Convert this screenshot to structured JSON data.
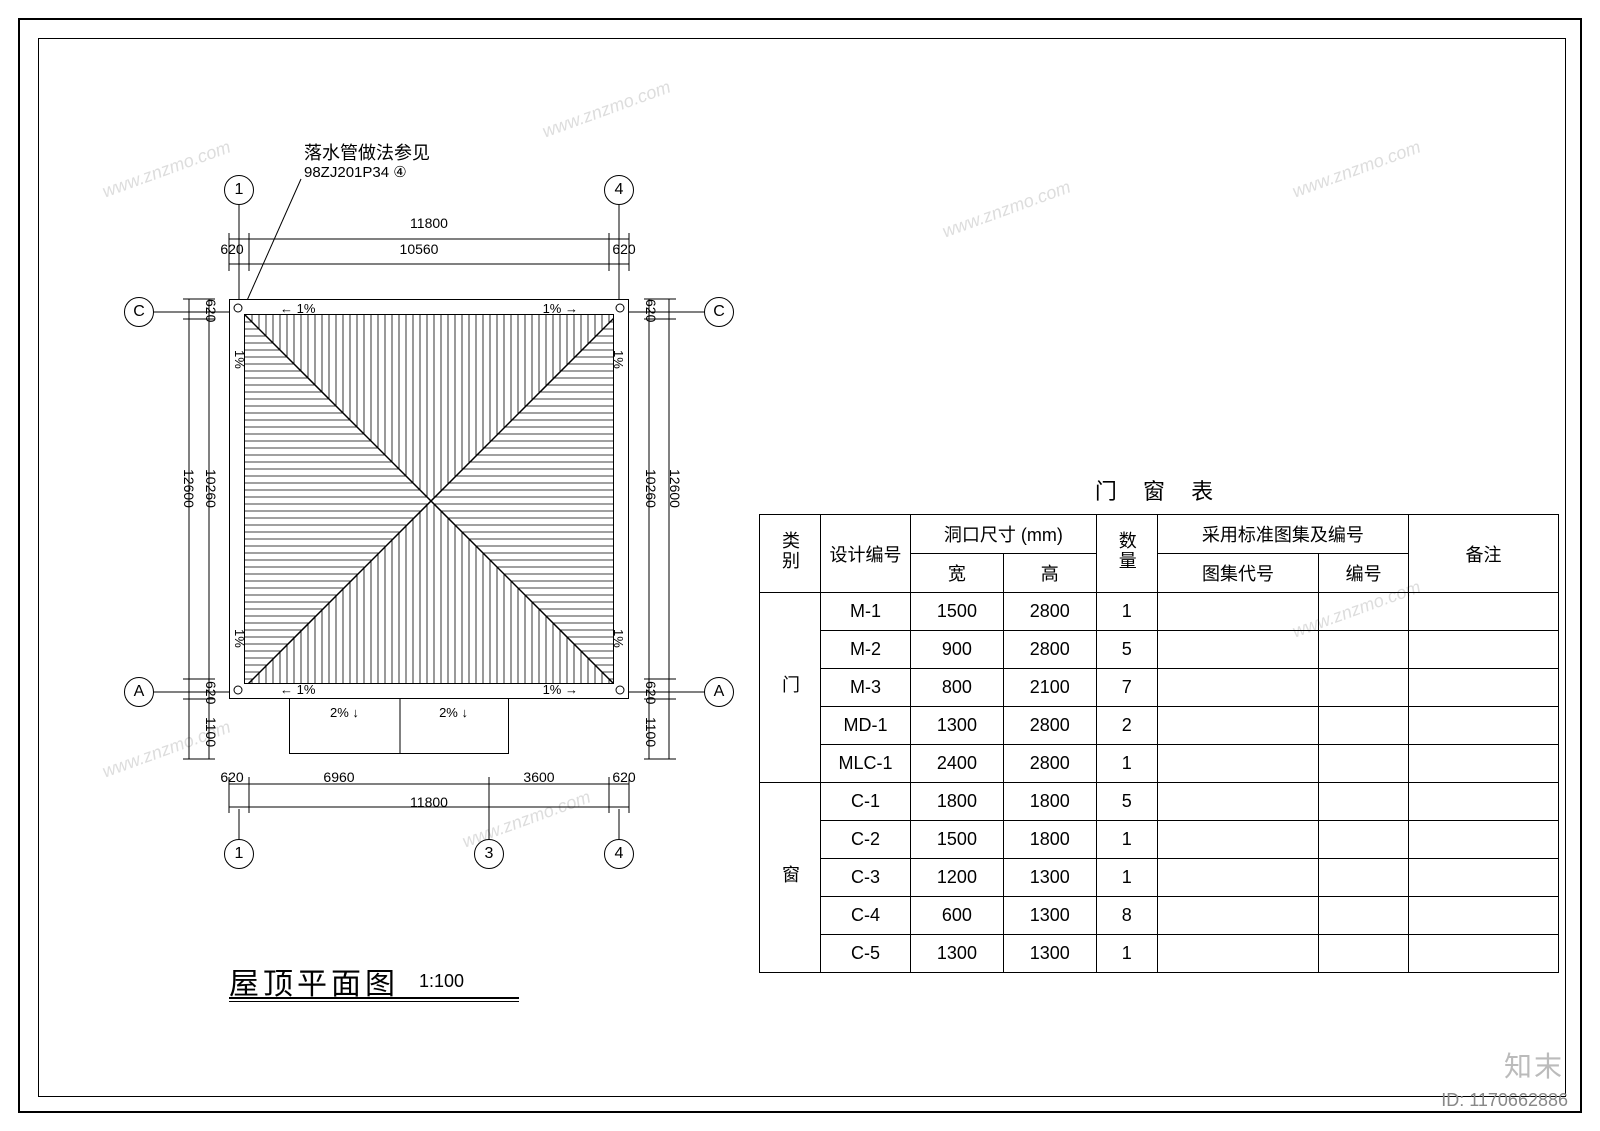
{
  "frame": {
    "outer_color": "#000000",
    "inner_color": "#000000",
    "background": "#ffffff"
  },
  "note": {
    "line1": "落水管做法参见",
    "line2": "98ZJ201P34 ④"
  },
  "dimensions": {
    "top_total": "11800",
    "top_left": "620",
    "top_mid": "10560",
    "top_right": "620",
    "left_620a": "620",
    "left_main": "10260",
    "left_620b": "620",
    "left_1100": "1100",
    "left_total": "12600",
    "right_620a": "620",
    "right_main": "10260",
    "right_620b": "620",
    "right_1100": "1100",
    "right_total": "12600",
    "bottom_620a": "620",
    "bottom_6960": "6960",
    "bottom_3600": "3600",
    "bottom_620b": "620",
    "bottom_total": "11800"
  },
  "slopes": {
    "p1": "1%",
    "p2": "2%"
  },
  "grid_bubbles": {
    "top_left": "1",
    "top_right": "4",
    "left_top": "C",
    "left_bottom": "A",
    "right_top": "C",
    "right_bottom": "A",
    "bottom_left": "1",
    "bottom_mid": "3",
    "bottom_right": "4"
  },
  "title": {
    "text": "屋顶平面图",
    "scale": "1:100"
  },
  "schedule": {
    "title": "门 窗 表",
    "headers": {
      "col1": "类别",
      "col2": "设计编号",
      "col3": "洞口尺寸 (mm)",
      "col3a": "宽",
      "col3b": "高",
      "col4": "数量",
      "col5": "采用标准图集及编号",
      "col5a": "图集代号",
      "col5b": "编号",
      "col6": "备注"
    },
    "groups": [
      {
        "label": "门",
        "rows": [
          {
            "id": "M-1",
            "w": "1500",
            "h": "2800",
            "qty": "1",
            "std": "",
            "num": "",
            "note": ""
          },
          {
            "id": "M-2",
            "w": "900",
            "h": "2800",
            "qty": "5",
            "std": "",
            "num": "",
            "note": ""
          },
          {
            "id": "M-3",
            "w": "800",
            "h": "2100",
            "qty": "7",
            "std": "",
            "num": "",
            "note": ""
          },
          {
            "id": "MD-1",
            "w": "1300",
            "h": "2800",
            "qty": "2",
            "std": "",
            "num": "",
            "note": ""
          },
          {
            "id": "MLC-1",
            "w": "2400",
            "h": "2800",
            "qty": "1",
            "std": "",
            "num": "",
            "note": ""
          }
        ]
      },
      {
        "label": "窗",
        "rows": [
          {
            "id": "C-1",
            "w": "1800",
            "h": "1800",
            "qty": "5",
            "std": "",
            "num": "",
            "note": ""
          },
          {
            "id": "C-2",
            "w": "1500",
            "h": "1800",
            "qty": "1",
            "std": "",
            "num": "",
            "note": ""
          },
          {
            "id": "C-3",
            "w": "1200",
            "h": "1300",
            "qty": "1",
            "std": "",
            "num": "",
            "note": ""
          },
          {
            "id": "C-4",
            "w": "600",
            "h": "1300",
            "qty": "8",
            "std": "",
            "num": "",
            "note": ""
          },
          {
            "id": "C-5",
            "w": "1300",
            "h": "1300",
            "qty": "1",
            "std": "",
            "num": "",
            "note": ""
          }
        ]
      }
    ]
  },
  "watermark": {
    "text": "www.znzmo.com",
    "brand": "知末",
    "id_label": "ID: 1170662886"
  },
  "roof_style": {
    "hatch_color": "#000000",
    "hatch_spacing": 7,
    "border_color": "#000000"
  }
}
